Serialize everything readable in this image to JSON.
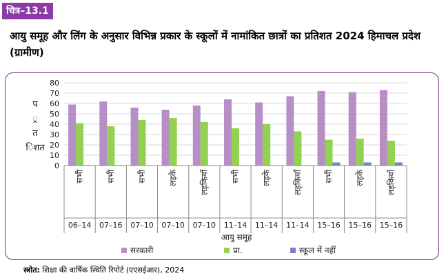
{
  "figure_label": "चित्र–13.1",
  "title": "आयु समूह और लिंग के अनुसार विभिन्न प्रकार के स्कूलों में नामांकित छात्रों का प्रतिशत 2024 हिमाचल प्रदेश (ग्रामीण)",
  "source_label": "स्त्रोत:",
  "source_text": "शिक्षा की वार्षिक स्थिति रिपोर्ट (एएसईआर), 2024",
  "chart_data": {
    "type": "bar",
    "ylabel": "प्रतिशत",
    "xlabel": "आयु समूह",
    "ylim": [
      0,
      80
    ],
    "yticks": [
      0,
      10,
      20,
      30,
      40,
      50,
      60,
      70,
      80
    ],
    "gridlines": true,
    "legend_position": "bottom",
    "categories": [
      "सभी",
      "सभी",
      "सभी",
      "लड़के",
      "लड़कियाँ",
      "सभी",
      "लड़के",
      "लड़कियाँ",
      "सभी",
      "लड़के",
      "लड़कियाँ"
    ],
    "age_groups": [
      "06–14",
      "07–16",
      "07–10",
      "07–10",
      "07–10",
      "11–14",
      "11–14",
      "11–14",
      "15–16",
      "15–16",
      "15–16"
    ],
    "series": [
      {
        "name": "सरकारी",
        "color": "#b78fc6",
        "values": [
          59,
          62,
          56,
          54,
          58,
          64,
          61,
          67,
          72,
          71,
          73
        ]
      },
      {
        "name": "प्रा.",
        "color": "#93d150",
        "values": [
          41,
          38,
          44,
          46,
          42,
          36,
          40,
          33,
          25,
          26,
          24
        ]
      },
      {
        "name": "स्कूल में नहीं",
        "color": "#7b7fc4",
        "values": [
          0.5,
          0.5,
          0.2,
          0.2,
          0.3,
          0.3,
          0.3,
          0.5,
          3,
          3,
          3
        ]
      }
    ]
  }
}
